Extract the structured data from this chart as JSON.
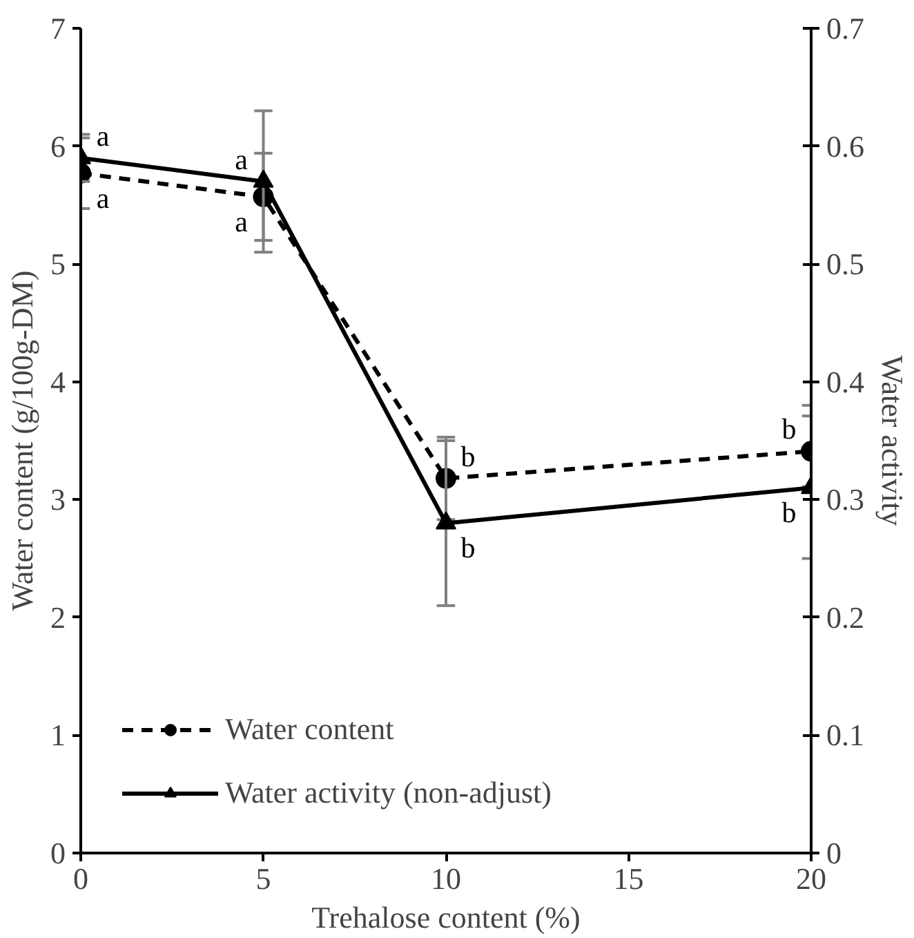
{
  "chart_data": {
    "type": "line",
    "xlabel": "Trehalose content (%)",
    "ylabel": "Water content (g/100g-DM)",
    "y2label": "Water activity",
    "x": [
      0,
      5,
      10,
      20
    ],
    "xlim": [
      0,
      20
    ],
    "xticks": [
      0,
      5,
      10,
      15,
      20
    ],
    "ylim": [
      0,
      7
    ],
    "yticks": [
      0,
      1,
      2,
      3,
      4,
      5,
      6,
      7
    ],
    "y2lim": [
      0,
      0.7
    ],
    "y2ticks": [
      0,
      0.1,
      0.2,
      0.3,
      0.4,
      0.5,
      0.6,
      0.7
    ],
    "series": [
      {
        "name": "Water content",
        "color": "#000000",
        "values": [
          5.77,
          5.57,
          3.18,
          3.41
        ],
        "errors": [
          0.3,
          0.37,
          0.35,
          0.3
        ],
        "marker": "circle",
        "line_style": "dashed"
      },
      {
        "name": "Water activity (non-adjust)",
        "color": "#000000",
        "axis": "y2",
        "values": [
          0.59,
          0.57,
          0.28,
          0.31
        ],
        "errors": [
          0.02,
          0.06,
          0.07,
          [
            0.25,
            0.38
          ]
        ],
        "marker": "triangle",
        "line_style": "solid"
      }
    ],
    "annotations": [
      {
        "text": "a",
        "x": 0,
        "y": 5.9
      },
      {
        "text": "a",
        "x": 0,
        "y": 5.77
      },
      {
        "text": "a",
        "x": 5,
        "y": 5.7
      },
      {
        "text": "a",
        "x": 5,
        "y": 5.57
      },
      {
        "text": "b",
        "x": 10,
        "y": 3.18
      },
      {
        "text": "b",
        "x": 10,
        "y": 2.8
      },
      {
        "text": "b",
        "x": 20,
        "y": 3.41
      },
      {
        "text": "b",
        "x": 20,
        "y": 3.1
      }
    ],
    "grid": false,
    "legend": "bottom left"
  }
}
